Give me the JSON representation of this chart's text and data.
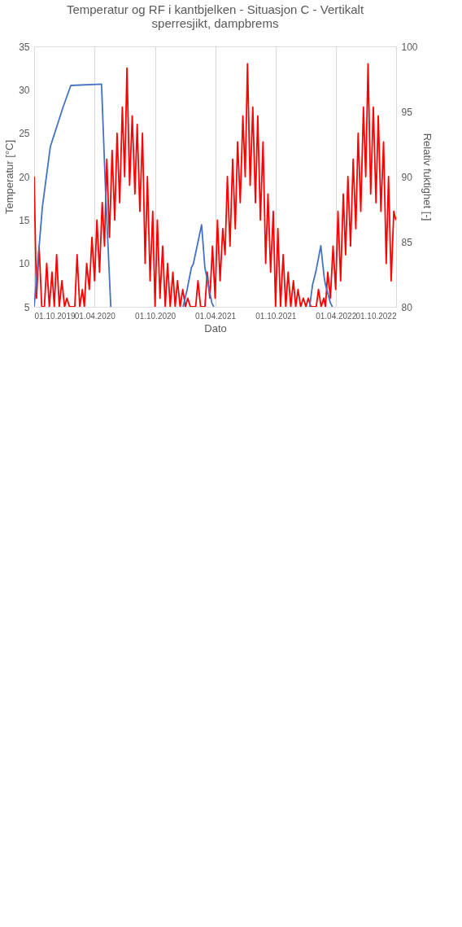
{
  "chart_data": {
    "type": "line",
    "title": "Temperatur og RF i kantbjelken - Situasjon C - Vertikalt sperresjikt, dampbrems",
    "xlabel": "Dato",
    "ylabel": "Temperatur [°C]",
    "y2label": "Relativ fuktighet [-]",
    "x": [
      "2019-10-01",
      "2019-10-08",
      "2019-10-16",
      "2019-10-24",
      "2019-11-01",
      "2019-11-08",
      "2019-11-16",
      "2019-11-24",
      "2019-12-01",
      "2019-12-08",
      "2019-12-16",
      "2019-12-24",
      "2020-01-01",
      "2020-01-08",
      "2020-01-16",
      "2020-01-24",
      "2020-02-01",
      "2020-02-08",
      "2020-02-16",
      "2020-02-24",
      "2020-03-01",
      "2020-03-08",
      "2020-03-16",
      "2020-03-24",
      "2020-04-01",
      "2020-04-08",
      "2020-04-16",
      "2020-04-24",
      "2020-05-01",
      "2020-05-08",
      "2020-05-16",
      "2020-05-24",
      "2020-06-01",
      "2020-06-08",
      "2020-06-16",
      "2020-06-24",
      "2020-07-01",
      "2020-07-08",
      "2020-07-16",
      "2020-07-24",
      "2020-08-01",
      "2020-08-08",
      "2020-08-16",
      "2020-08-24",
      "2020-09-01",
      "2020-09-08",
      "2020-09-16",
      "2020-09-24",
      "2020-10-01",
      "2020-10-08",
      "2020-10-16",
      "2020-10-24",
      "2020-11-01",
      "2020-11-08",
      "2020-11-16",
      "2020-11-24",
      "2020-12-01",
      "2020-12-08",
      "2020-12-16",
      "2020-12-24",
      "2021-01-01",
      "2021-01-08",
      "2021-01-16",
      "2021-01-24",
      "2021-02-01",
      "2021-02-08",
      "2021-02-16",
      "2021-02-24",
      "2021-03-01",
      "2021-03-08",
      "2021-03-16",
      "2021-03-24",
      "2021-04-01",
      "2021-04-08",
      "2021-04-16",
      "2021-04-24",
      "2021-05-01",
      "2021-05-08",
      "2021-05-16",
      "2021-05-24",
      "2021-06-01",
      "2021-06-08",
      "2021-06-16",
      "2021-06-24",
      "2021-07-01",
      "2021-07-08",
      "2021-07-16",
      "2021-07-24",
      "2021-08-01",
      "2021-08-08",
      "2021-08-16",
      "2021-08-24",
      "2021-09-01",
      "2021-09-08",
      "2021-09-16",
      "2021-09-24",
      "2021-10-01",
      "2021-10-08",
      "2021-10-16",
      "2021-10-24",
      "2021-11-01",
      "2021-11-08",
      "2021-11-16",
      "2021-11-24",
      "2021-12-01",
      "2021-12-08",
      "2021-12-16",
      "2021-12-24",
      "2022-01-01",
      "2022-01-08",
      "2022-01-16",
      "2022-01-24",
      "2022-02-01",
      "2022-02-08",
      "2022-02-16",
      "2022-02-24",
      "2022-03-01",
      "2022-03-08",
      "2022-03-16",
      "2022-03-24",
      "2022-04-01",
      "2022-04-08",
      "2022-04-16",
      "2022-04-24",
      "2022-05-01",
      "2022-05-08",
      "2022-05-16",
      "2022-05-24",
      "2022-06-01",
      "2022-06-08",
      "2022-06-16",
      "2022-06-24",
      "2022-07-01",
      "2022-07-08",
      "2022-07-16",
      "2022-07-24",
      "2022-08-01",
      "2022-08-08",
      "2022-08-16",
      "2022-08-24",
      "2022-09-01",
      "2022-09-08",
      "2022-09-16",
      "2022-09-24",
      "2022-09-30"
    ],
    "series": [
      {
        "color": "#ff0000",
        "values": [
          20,
          6,
          12,
          5,
          5,
          10,
          5,
          9,
          5,
          11,
          5,
          8,
          5,
          6,
          5,
          5,
          5,
          11,
          5,
          7,
          5,
          10,
          7,
          13,
          8,
          15,
          9,
          17,
          12,
          22,
          13,
          23,
          15,
          25,
          17,
          28,
          20,
          32.5,
          19,
          27,
          18,
          26,
          16,
          25,
          10,
          20,
          8,
          16,
          5,
          15,
          6,
          12,
          5,
          10,
          5,
          9,
          5,
          8,
          5,
          7,
          5,
          6,
          5,
          5,
          5,
          8,
          5,
          5,
          5,
          9,
          6,
          12,
          6,
          15,
          8,
          14,
          11,
          20,
          12,
          22,
          14,
          24,
          17,
          27,
          20,
          33,
          19,
          28,
          17,
          27,
          15,
          24,
          10,
          18,
          9,
          16,
          5,
          14,
          5,
          11,
          5,
          9,
          5,
          8,
          5,
          7,
          5,
          6,
          5,
          6,
          5,
          5,
          5,
          7,
          5,
          6,
          5,
          9,
          6,
          12,
          7,
          16,
          8,
          18,
          11,
          20,
          12,
          22,
          14,
          25,
          16,
          28,
          20,
          33,
          18,
          28,
          17,
          27,
          16,
          24,
          10,
          20,
          8,
          16,
          15
        ]
      },
      {
        "color": "#4472c4",
        "axis": "y2",
        "x": [
          "2019-10-01",
          "2019-10-26",
          "2019-11-19",
          "2019-12-27",
          "2020-01-20",
          "2020-04-22",
          "2020-05-04",
          "2020-05-20",
          "2020-10-01",
          "2020-12-25",
          "2021-01-06",
          "2021-01-19",
          "2021-01-25",
          "2021-02-19",
          "2021-03-01",
          "2021-03-22",
          "2021-03-28",
          "2021-10-01",
          "2022-01-12",
          "2022-01-21",
          "2022-01-31",
          "2022-02-15",
          "2022-02-25",
          "2022-03-01",
          "2022-03-16",
          "2022-03-22"
        ],
        "values": [
          80,
          87.7,
          92.3,
          95.3,
          97,
          97.1,
          89,
          80,
          null,
          80,
          81.3,
          83,
          83.3,
          86.3,
          83,
          80.3,
          80,
          null,
          80,
          81.7,
          82.7,
          84.7,
          82.3,
          81.7,
          80.3,
          80
        ]
      }
    ],
    "xlim": [
      "2019-10-01",
      "2022-10-01"
    ],
    "xticks": [
      {
        "value": "2019-10-01",
        "label": "01.10.2019"
      },
      {
        "value": "2020-04-01",
        "label": "01.04.2020"
      },
      {
        "value": "2020-10-01",
        "label": "01.10.2020"
      },
      {
        "value": "2021-04-01",
        "label": "01.04.2021"
      },
      {
        "value": "2021-10-01",
        "label": "01.10.2021"
      },
      {
        "value": "2022-04-01",
        "label": "01.04.2022"
      },
      {
        "value": "2022-10-01",
        "label": "01.10.2022"
      }
    ],
    "ylim": [
      5,
      35
    ],
    "yticks": [
      5,
      10,
      15,
      20,
      25,
      30,
      35
    ],
    "y2lim": [
      80,
      100
    ],
    "y2ticks": [
      80,
      85,
      90,
      95,
      100
    ],
    "grid": "x"
  }
}
